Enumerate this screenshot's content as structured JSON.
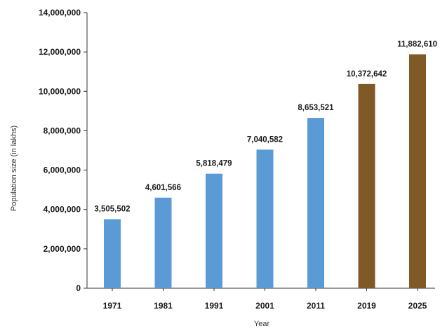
{
  "chart_data": {
    "type": "bar",
    "title": "",
    "xlabel": "Year",
    "ylabel": "Population size (in lakhs)",
    "ylim": [
      0,
      14000000
    ],
    "yticks": [
      0,
      2000000,
      4000000,
      6000000,
      8000000,
      10000000,
      12000000,
      14000000
    ],
    "ytick_labels": [
      "0",
      "2,000,000",
      "4,000,000",
      "6,000,000",
      "8,000,000",
      "10,000,000",
      "12,000,000",
      "14,000,000"
    ],
    "categories": [
      "1971",
      "1981",
      "1991",
      "2001",
      "2011",
      "2019",
      "2025"
    ],
    "values": [
      3505502,
      4601566,
      5818479,
      7040582,
      8653521,
      10372642,
      11882610
    ],
    "value_labels": [
      "3,505,502",
      "4,601,566",
      "5,818,479",
      "7,040,582",
      "8,653,521",
      "10,372,642",
      "11,882,610"
    ],
    "bar_colors": [
      "#5b9bd5",
      "#5b9bd5",
      "#5b9bd5",
      "#5b9bd5",
      "#5b9bd5",
      "#7f5a26",
      "#7f5a26"
    ],
    "grid": false,
    "legend": "none"
  }
}
